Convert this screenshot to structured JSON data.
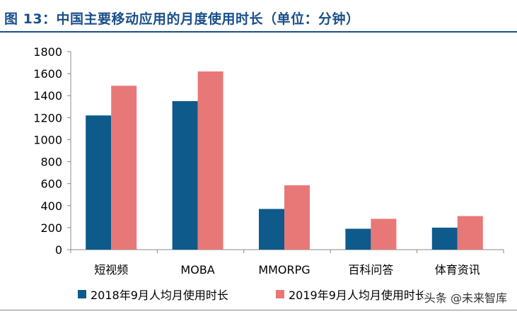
{
  "title": "图 13：中国主要移动应用的月度使用时长（单位：分钟）",
  "watermark": "头条 @未来智库",
  "chart_data": {
    "type": "bar",
    "title": "图 13：中国主要移动应用的月度使用时长（单位：分钟）",
    "categories": [
      "短视频",
      "MOBA",
      "MMORPG",
      "百科问答",
      "体育资讯"
    ],
    "series": [
      {
        "name": "2018年9月人均月使用时长",
        "values": [
          1220,
          1350,
          370,
          190,
          200
        ],
        "color": "#0e5a8a"
      },
      {
        "name": "2019年9月人均月使用时长",
        "values": [
          1490,
          1620,
          585,
          280,
          305
        ],
        "color": "#e87878"
      }
    ],
    "yticks": [
      "0",
      "200",
      "400",
      "600",
      "800",
      "1000",
      "1200",
      "1400",
      "1600",
      "1800"
    ],
    "ylim": [
      0,
      1800
    ],
    "legend_position": "bottom",
    "grid": false
  }
}
